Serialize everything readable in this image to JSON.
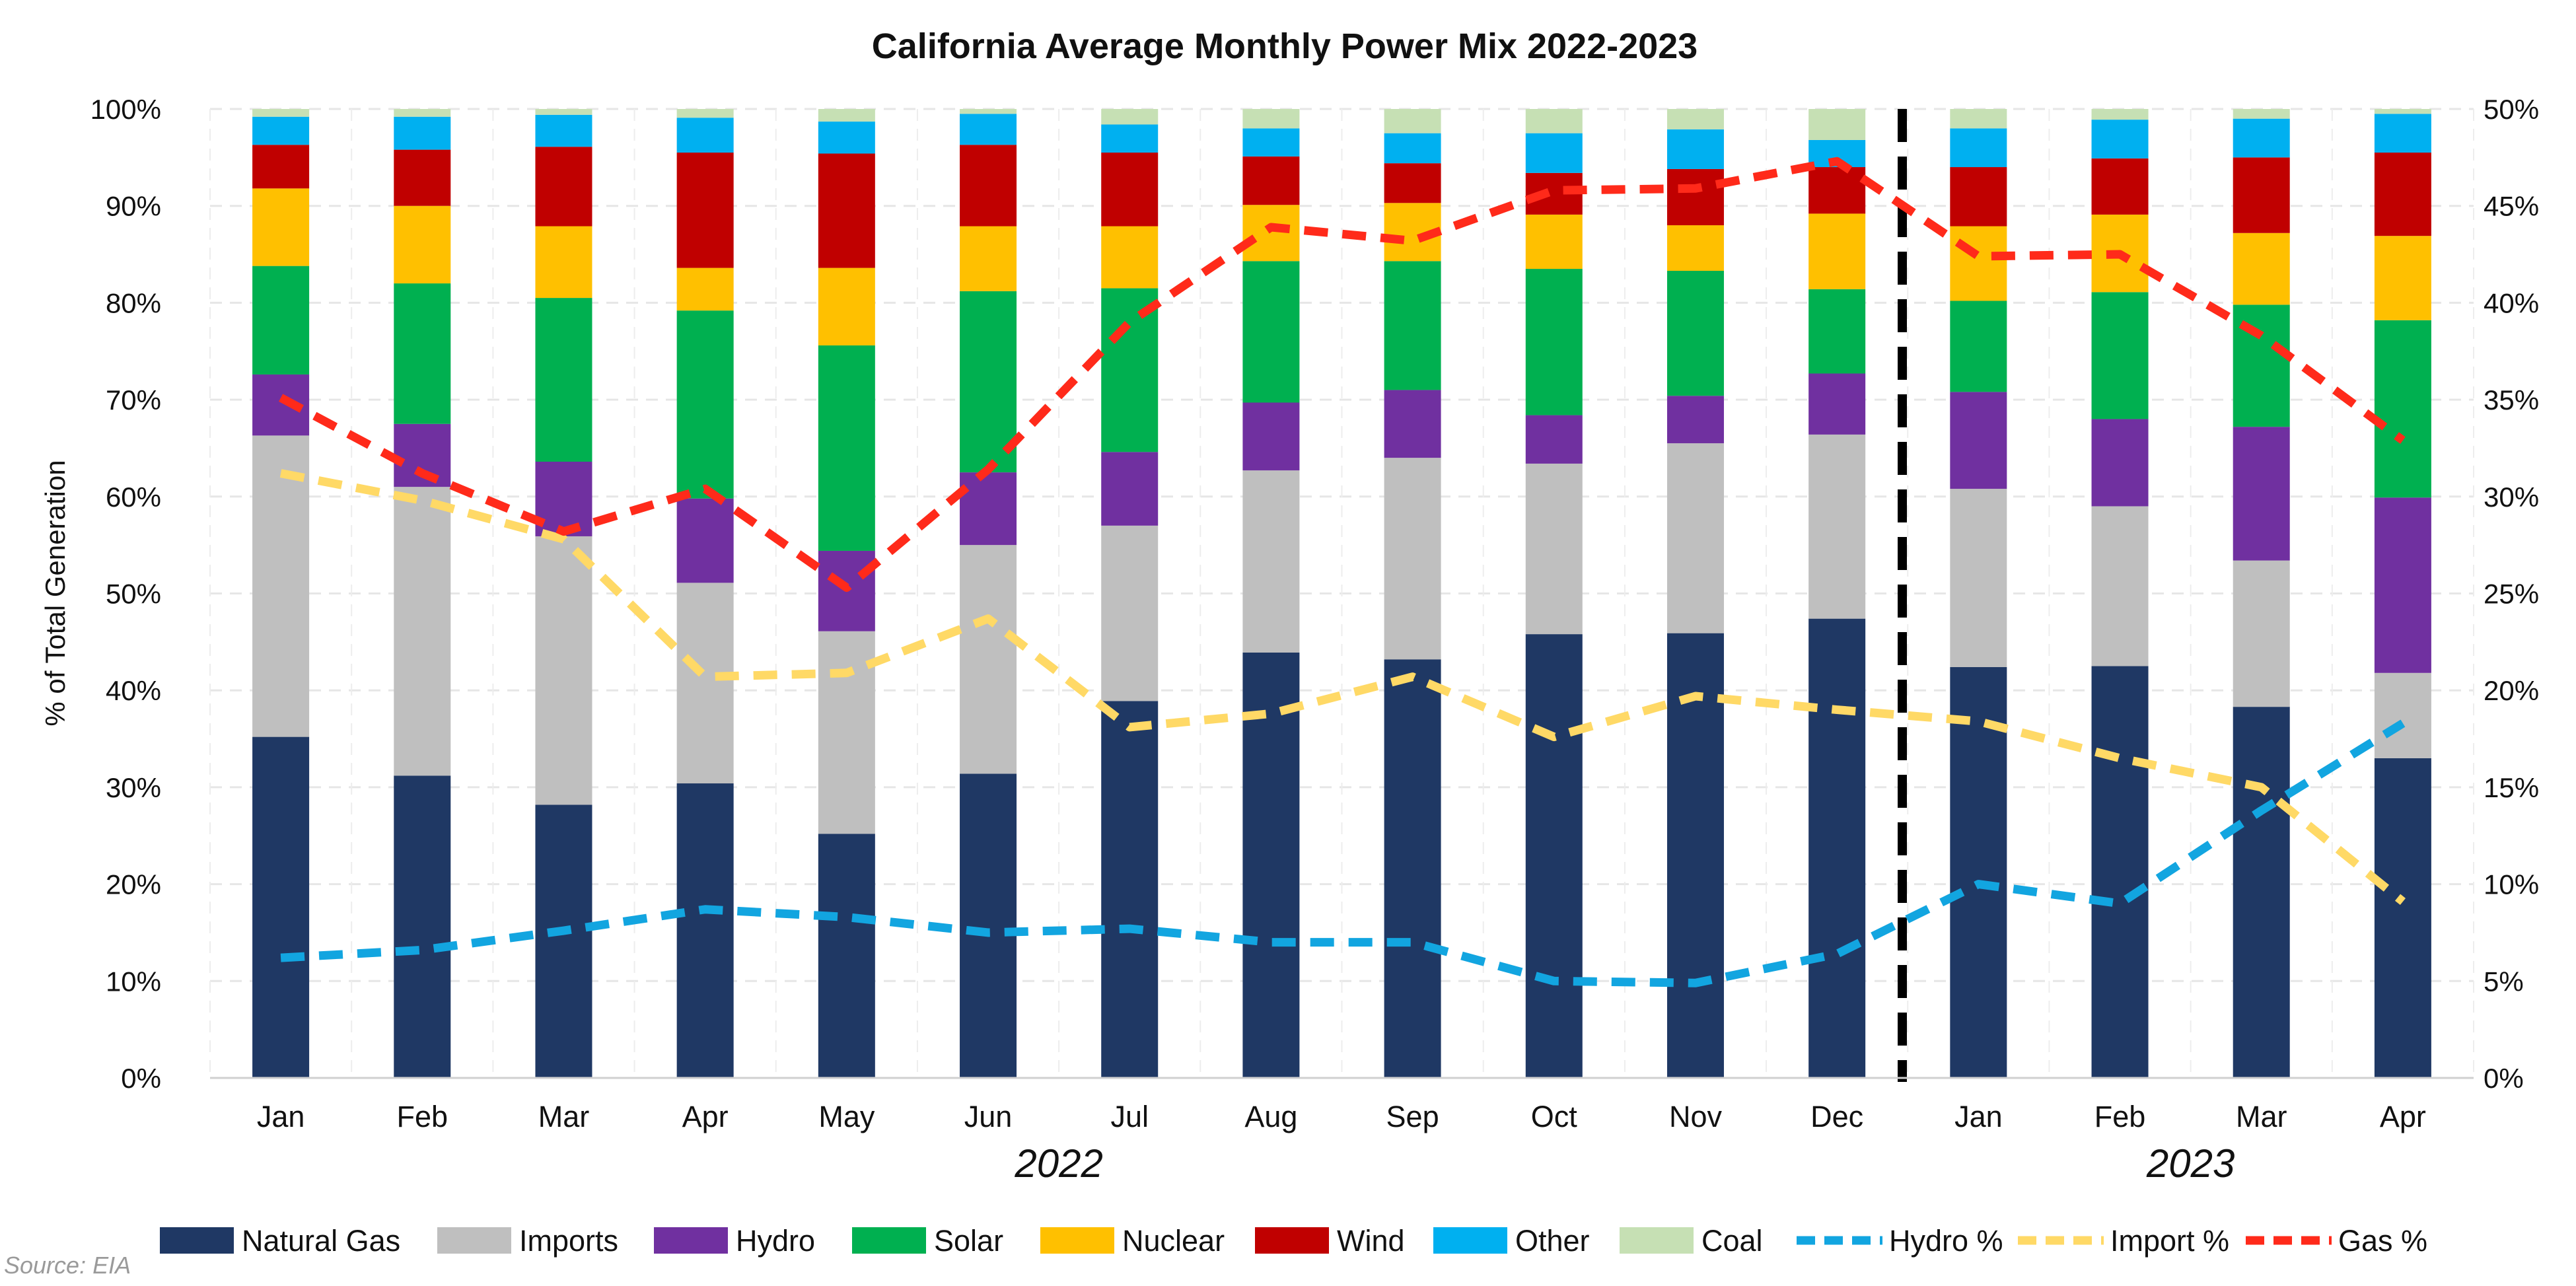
{
  "chart_data": {
    "type": "bar",
    "stacked": true,
    "title": "California Average Monthly Power Mix 2022-2023",
    "ylabel": "% of Total Generation",
    "ylim": [
      0,
      100
    ],
    "y2lim": [
      0,
      50
    ],
    "grid": true,
    "legend_position": "bottom",
    "source": "Source: EIA",
    "categories": [
      "Jan",
      "Feb",
      "Mar",
      "Apr",
      "May",
      "Jun",
      "Jul",
      "Aug",
      "Sep",
      "Oct",
      "Nov",
      "Dec",
      "Jan",
      "Feb",
      "Mar",
      "Apr"
    ],
    "year_labels": [
      {
        "label": "2022",
        "first": 0,
        "last": 11
      },
      {
        "label": "2023",
        "first": 12,
        "last": 15
      }
    ],
    "divider_between": [
      11,
      12
    ],
    "y_ticks": [
      "0%",
      "10%",
      "20%",
      "30%",
      "40%",
      "50%",
      "60%",
      "70%",
      "80%",
      "90%",
      "100%"
    ],
    "y2_ticks": [
      "0%",
      "5%",
      "10%",
      "15%",
      "20%",
      "25%",
      "30%",
      "35%",
      "40%",
      "45%",
      "50%"
    ],
    "series": [
      {
        "name": "Natural Gas",
        "color": "#1f3864",
        "values": [
          35.2,
          31.2,
          28.2,
          30.4,
          25.2,
          31.4,
          38.9,
          43.9,
          43.2,
          45.8,
          45.9,
          47.4,
          42.4,
          42.5,
          38.3,
          33.0
        ]
      },
      {
        "name": "Imports",
        "color": "#bfbfbf",
        "values": [
          31.1,
          29.8,
          27.7,
          20.7,
          20.9,
          23.6,
          18.1,
          18.8,
          20.8,
          17.6,
          19.6,
          19.0,
          18.4,
          16.5,
          15.1,
          8.8
        ]
      },
      {
        "name": "Hydro",
        "color": "#7030a0",
        "values": [
          6.3,
          6.5,
          7.7,
          8.7,
          8.3,
          7.5,
          7.6,
          7.0,
          7.0,
          5.0,
          4.9,
          6.3,
          10.0,
          9.0,
          13.8,
          18.1
        ]
      },
      {
        "name": "Solar",
        "color": "#00b050",
        "values": [
          11.2,
          14.5,
          16.9,
          19.4,
          21.2,
          18.7,
          16.9,
          14.6,
          13.3,
          15.1,
          12.9,
          8.7,
          9.4,
          13.1,
          12.6,
          18.3
        ]
      },
      {
        "name": "Nuclear",
        "color": "#ffc000",
        "values": [
          8.0,
          8.0,
          7.4,
          4.4,
          8.0,
          6.7,
          6.4,
          5.8,
          6.0,
          5.6,
          4.7,
          7.8,
          7.7,
          8.0,
          7.4,
          8.7
        ]
      },
      {
        "name": "Wind",
        "color": "#c00000",
        "values": [
          4.5,
          5.8,
          8.2,
          11.9,
          11.8,
          8.4,
          7.6,
          5.0,
          4.1,
          4.3,
          5.8,
          4.8,
          6.1,
          5.8,
          7.8,
          8.6
        ]
      },
      {
        "name": "Other",
        "color": "#00b0f0",
        "values": [
          2.9,
          3.4,
          3.3,
          3.6,
          3.3,
          3.2,
          2.9,
          2.9,
          3.1,
          4.1,
          4.1,
          2.8,
          4.0,
          4.0,
          4.0,
          4.0
        ]
      },
      {
        "name": "Coal",
        "color": "#c6e0b4",
        "values": [
          0.8,
          0.8,
          0.6,
          0.9,
          1.3,
          0.5,
          1.6,
          2.0,
          2.5,
          2.5,
          2.1,
          3.2,
          2.0,
          1.1,
          1.0,
          0.5
        ]
      }
    ],
    "line_series": [
      {
        "name": "Hydro %",
        "color": "#12a5e0",
        "axis": "right",
        "values": [
          6.2,
          6.6,
          7.6,
          8.7,
          8.3,
          7.5,
          7.7,
          7.0,
          7.0,
          5.0,
          4.9,
          6.4,
          10.0,
          9.0,
          13.8,
          18.3
        ]
      },
      {
        "name": "Import %",
        "color": "#ffd966",
        "axis": "right",
        "values": [
          31.2,
          29.8,
          27.8,
          20.7,
          20.9,
          23.7,
          18.1,
          18.8,
          20.7,
          17.6,
          19.7,
          19.0,
          18.4,
          16.5,
          15.0,
          9.1
        ]
      },
      {
        "name": "Gas %",
        "color": "#ff2a1a",
        "axis": "right",
        "values": [
          35.1,
          31.2,
          28.2,
          30.4,
          25.3,
          31.4,
          39.0,
          43.9,
          43.2,
          45.8,
          45.9,
          47.3,
          42.4,
          42.5,
          38.3,
          32.9
        ]
      }
    ]
  }
}
